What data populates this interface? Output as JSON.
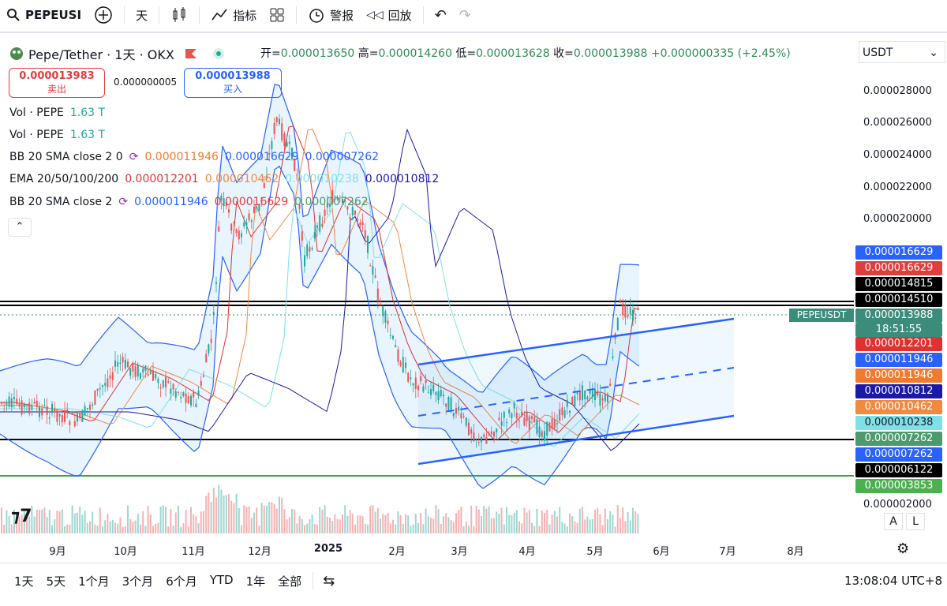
{
  "toolbar": {
    "symbol": "PEPEUSI",
    "interval": "天",
    "indicators_label": "指标",
    "alert_label": "警报",
    "replay_label": "回放"
  },
  "header": {
    "title": "Pepe/Tether · 1天 · OKX",
    "open_label": "开=",
    "open": "0.000013650",
    "high_label": "高=",
    "high": "0.000014260",
    "low_label": "低=",
    "low": "0.000013628",
    "close_label": "收=",
    "close": "0.000013988",
    "change": "+0.000000335 (+2.45%)",
    "currency": "USDT"
  },
  "trade": {
    "sell_price": "0.000013983",
    "sell_label": "卖出",
    "spread": "0.000000005",
    "buy_price": "0.000013988",
    "buy_label": "买入"
  },
  "legend": {
    "vol1_name": "Vol · PEPE",
    "vol1_value": "1.63 T",
    "vol2_name": "Vol · PEPE",
    "vol2_value": "1.63 T",
    "bb1_name": "BB 20 SMA close 2 0",
    "bb1_v1": "0.000011946",
    "bb1_v2": "0.000016629",
    "bb1_v3": "0.000007262",
    "ema_name": "EMA 20/50/100/200",
    "ema_v1": "0.000012201",
    "ema_v2": "0.000010462",
    "ema_v3": "0.000010238",
    "ema_v4": "0.000010812",
    "bb2_name": "BB 20 SMA close 2",
    "bb2_v1": "0.000011946",
    "bb2_v2": "0.000016629",
    "bb2_v3": "0.000007262"
  },
  "price_tags": [
    {
      "value": "0.000016629",
      "color": "#2962ff"
    },
    {
      "value": "0.000016629",
      "color": "#e03e3e"
    },
    {
      "value": "0.000014815",
      "color": "#000000"
    },
    {
      "value": "0.000014510",
      "color": "#000000"
    },
    {
      "value": "0.000013988",
      "color": "#3b8c7a",
      "sub": "18:51:55"
    },
    {
      "value": "0.000012201",
      "color": "#e0312f"
    },
    {
      "value": "0.000011946",
      "color": "#2962ff"
    },
    {
      "value": "0.000011946",
      "color": "#f07b2e"
    },
    {
      "value": "0.000010812",
      "color": "#1a1aa8"
    },
    {
      "value": "0.000010462",
      "color": "#f08a3e"
    },
    {
      "value": "0.000010238",
      "color": "#7ee0e8"
    },
    {
      "value": "0.000007262",
      "color": "#4c9a6e"
    },
    {
      "value": "0.000007262",
      "color": "#2962ff"
    },
    {
      "value": "0.000006122",
      "color": "#000000"
    },
    {
      "value": "0.000003853",
      "color": "#4caf50"
    }
  ],
  "symbol_tag": "PEPEUSDT",
  "bottom": {
    "ranges": [
      "1天",
      "5天",
      "1个月",
      "3个月",
      "6个月",
      "YTD",
      "1年",
      "全部"
    ],
    "time": "13:08:04 UTC+8",
    "scale_a": "A",
    "scale_l": "L"
  },
  "chart_data": {
    "type": "candlestick",
    "yticks": [
      "0.000028000",
      "0.000026000",
      "0.000024000",
      "0.000022000",
      "0.000020000",
      "0.000002000"
    ],
    "xticks": [
      "9月",
      "10月",
      "11月",
      "12月",
      "2025",
      "2月",
      "3月",
      "4月",
      "5月",
      "6月",
      "7月",
      "8月"
    ],
    "ylim": [
      1e-06,
      3e-05
    ],
    "horizontal_lines": [
      1.4815e-05,
      1.451e-05,
      6.122e-06,
      3.853e-06
    ],
    "last_close": 1.3988e-05,
    "monthly_close": [
      {
        "month": "9月",
        "close": 8.5e-06
      },
      {
        "month": "10月",
        "close": 9.3e-06
      },
      {
        "month": "11月",
        "close": 1.8e-05
      },
      {
        "month": "12月",
        "close": 2e-05
      },
      {
        "month": "2025",
        "close": 1.8e-05
      },
      {
        "month": "2月",
        "close": 9.5e-06
      },
      {
        "month": "3月",
        "close": 7.5e-06
      },
      {
        "month": "4月",
        "close": 8.2e-06
      },
      {
        "month": "5月",
        "close": 1.4e-05
      }
    ]
  },
  "colors": {
    "up": "#26a69a",
    "down": "#ef5350",
    "bb": "#2962ff",
    "channel": "#2962ff"
  }
}
